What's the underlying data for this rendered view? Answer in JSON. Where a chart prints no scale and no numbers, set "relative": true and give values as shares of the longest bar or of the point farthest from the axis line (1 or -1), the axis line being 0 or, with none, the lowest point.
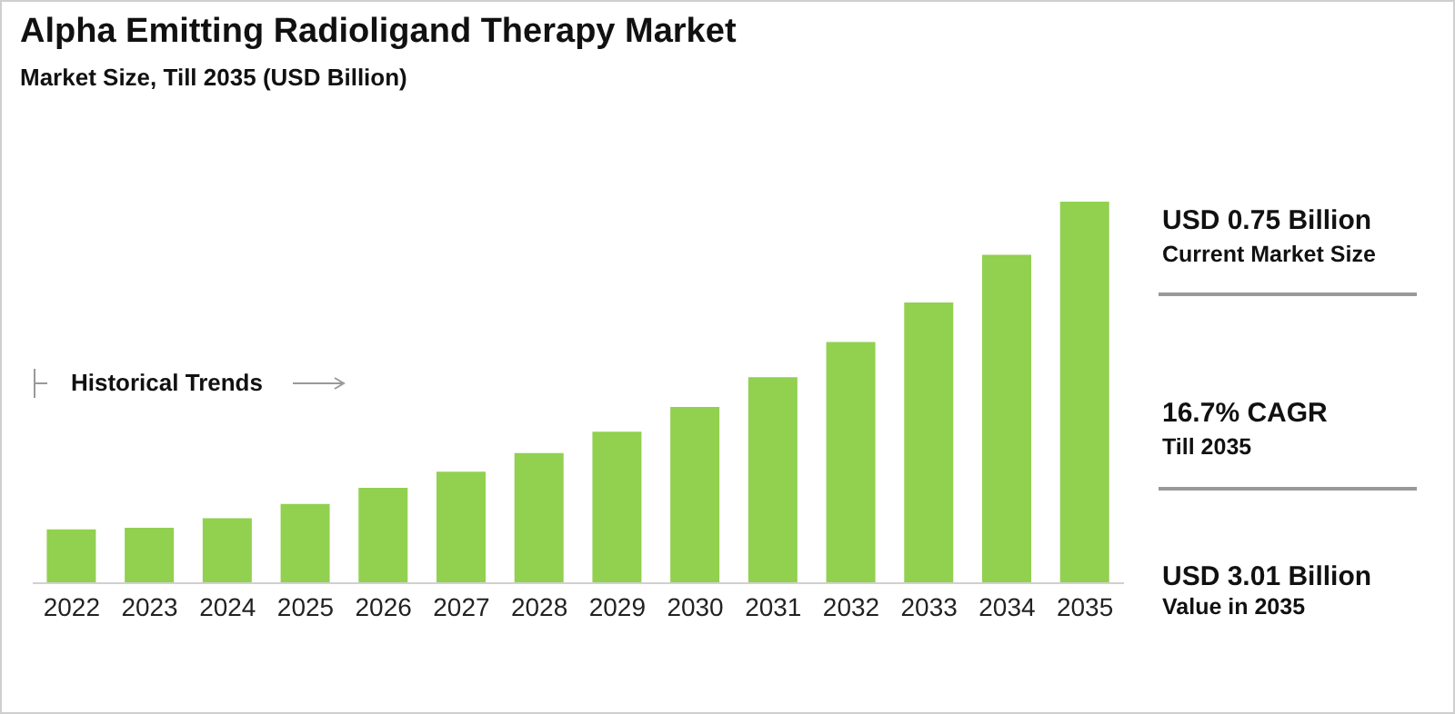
{
  "chart_data": {
    "type": "bar",
    "title": "Alpha Emitting Radioligand Therapy Market",
    "subtitle": "Market Size, Till 2035 (USD Billion)",
    "relative": true,
    "color": "#92d050",
    "grid": false,
    "categories": [
      "2022",
      "2023",
      "2024",
      "2025",
      "2026",
      "2027",
      "2028",
      "2029",
      "2030",
      "2031",
      "2032",
      "2033",
      "2034",
      "2035"
    ],
    "values": [
      0.141,
      0.145,
      0.17,
      0.208,
      0.25,
      0.292,
      0.341,
      0.397,
      0.462,
      0.54,
      0.632,
      0.736,
      0.861,
      1
    ],
    "annotations": [
      "Historical Trends",
      "USD 0.75 Billion",
      "Current Market Size",
      "16.7% CAGR",
      "Till 2035",
      "USD 3.01 Billion",
      "Value in 2035"
    ]
  }
}
